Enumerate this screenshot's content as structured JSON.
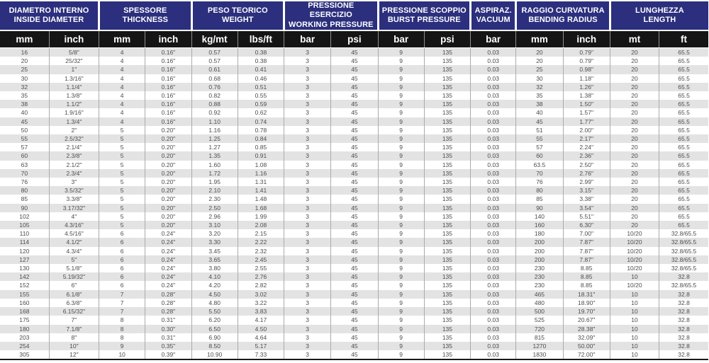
{
  "colors": {
    "header_blue": "#2b2f7d",
    "unit_band_black": "#151515",
    "stripe_gray": "#e3e3e4",
    "grid_line": "#ababab",
    "data_text": "#4d4d4d"
  },
  "table": {
    "groups": [
      {
        "line1": "DIAMETRO INTERNO",
        "line2": "INSIDE DIAMETER",
        "cols": [
          "mm",
          "inch"
        ]
      },
      {
        "line1": "SPESSORE",
        "line2": "THICKNESS",
        "cols": [
          "mm",
          "inch"
        ]
      },
      {
        "line1": "PESO TEORICO",
        "line2": "WEIGHT",
        "cols": [
          "kg/mt",
          "lbs/ft"
        ]
      },
      {
        "line1": "PRESSIONE ESERCIZIO",
        "line2": "WORKING PRESSURE",
        "cols": [
          "bar",
          "psi"
        ]
      },
      {
        "line1": "PRESSIONE SCOPPIO",
        "line2": "BURST PRESSURE",
        "cols": [
          "bar",
          "psi"
        ]
      },
      {
        "line1": "ASPIRAZ.",
        "line2": "VACUUM",
        "cols": [
          "bar"
        ]
      },
      {
        "line1": "RAGGIO CURVATURA",
        "line2": "BENDING RADIUS",
        "cols": [
          "mm",
          "inch"
        ]
      },
      {
        "line1": "LUNGHEZZA",
        "line2": "LENGTH",
        "cols": [
          "mt",
          "ft"
        ]
      }
    ],
    "rows": [
      [
        "16",
        "5/8\"",
        "4",
        "0.16\"",
        "0.57",
        "0.38",
        "3",
        "45",
        "9",
        "135",
        "0.03",
        "20",
        "0.79\"",
        "20",
        "65.5"
      ],
      [
        "20",
        "25/32\"",
        "4",
        "0.16\"",
        "0.57",
        "0.38",
        "3",
        "45",
        "9",
        "135",
        "0.03",
        "20",
        "0.79\"",
        "20",
        "65.5"
      ],
      [
        "25",
        "1\"",
        "4",
        "0.16\"",
        "0.61",
        "0.41",
        "3",
        "45",
        "9",
        "135",
        "0.03",
        "25",
        "0.98\"",
        "20",
        "65.5"
      ],
      [
        "30",
        "1.3/16\"",
        "4",
        "0.16\"",
        "0.68",
        "0.46",
        "3",
        "45",
        "9",
        "135",
        "0.03",
        "30",
        "1.18\"",
        "20",
        "65.5"
      ],
      [
        "32",
        "1.1/4\"",
        "4",
        "0.16\"",
        "0.76",
        "0.51",
        "3",
        "45",
        "9",
        "135",
        "0.03",
        "32",
        "1.26\"",
        "20",
        "65.5"
      ],
      [
        "35",
        "1.3/8\"",
        "4",
        "0.16\"",
        "0.82",
        "0.55",
        "3",
        "45",
        "9",
        "135",
        "0.03",
        "35",
        "1.38\"",
        "20",
        "65.5"
      ],
      [
        "38",
        "1.1/2\"",
        "4",
        "0.16\"",
        "0.88",
        "0.59",
        "3",
        "45",
        "9",
        "135",
        "0.03",
        "38",
        "1.50\"",
        "20",
        "65.5"
      ],
      [
        "40",
        "1.9/16\"",
        "4",
        "0.16\"",
        "0.92",
        "0.62",
        "3",
        "45",
        "9",
        "135",
        "0.03",
        "40",
        "1.57\"",
        "20",
        "65.5"
      ],
      [
        "45",
        "1.3/4\"",
        "4",
        "0.16\"",
        "1.10",
        "0.74",
        "3",
        "45",
        "9",
        "135",
        "0.03",
        "45",
        "1.77\"",
        "20",
        "65.5"
      ],
      [
        "50",
        "2\"",
        "5",
        "0.20\"",
        "1.16",
        "0.78",
        "3",
        "45",
        "9",
        "135",
        "0.03",
        "51",
        "2.00\"",
        "20",
        "65.5"
      ],
      [
        "55",
        "2.5/32\"",
        "5",
        "0.20\"",
        "1.25",
        "0.84",
        "3",
        "45",
        "9",
        "135",
        "0.03",
        "55",
        "2.17\"",
        "20",
        "65.5"
      ],
      [
        "57",
        "2.1/4\"",
        "5",
        "0.20\"",
        "1.27",
        "0.85",
        "3",
        "45",
        "9",
        "135",
        "0.03",
        "57",
        "2.24\"",
        "20",
        "65.5"
      ],
      [
        "60",
        "2.3/8\"",
        "5",
        "0.20\"",
        "1.35",
        "0.91",
        "3",
        "45",
        "9",
        "135",
        "0.03",
        "60",
        "2.36\"",
        "20",
        "65.5"
      ],
      [
        "63",
        "2.1/2\"",
        "5",
        "0.20\"",
        "1.60",
        "1.08",
        "3",
        "45",
        "9",
        "135",
        "0.03",
        "63.5",
        "2.50\"",
        "20",
        "65.5"
      ],
      [
        "70",
        "2.3/4\"",
        "5",
        "0.20\"",
        "1.72",
        "1.16",
        "3",
        "45",
        "9",
        "135",
        "0.03",
        "70",
        "2.76\"",
        "20",
        "65.5"
      ],
      [
        "76",
        "3\"",
        "5",
        "0.20\"",
        "1.95",
        "1.31",
        "3",
        "45",
        "9",
        "135",
        "0.03",
        "76",
        "2.99\"",
        "20",
        "65.5"
      ],
      [
        "80",
        "3.5/32\"",
        "5",
        "0.20\"",
        "2.10",
        "1.41",
        "3",
        "45",
        "9",
        "135",
        "0.03",
        "80",
        "3.15\"",
        "20",
        "65.5"
      ],
      [
        "85",
        "3.3/8\"",
        "5",
        "0.20\"",
        "2.30",
        "1.48",
        "3",
        "45",
        "9",
        "135",
        "0.03",
        "85",
        "3.38\"",
        "20",
        "65.5"
      ],
      [
        "90",
        "3.17/32\"",
        "5",
        "0.20\"",
        "2.50",
        "1.68",
        "3",
        "45",
        "9",
        "135",
        "0.03",
        "90",
        "3.54\"",
        "20",
        "65.5"
      ],
      [
        "102",
        "4\"",
        "5",
        "0.20\"",
        "2.96",
        "1.99",
        "3",
        "45",
        "9",
        "135",
        "0.03",
        "140",
        "5.51\"",
        "20",
        "65.5"
      ],
      [
        "105",
        "4.3/16\"",
        "5",
        "0.20\"",
        "3.10",
        "2.08",
        "3",
        "45",
        "9",
        "135",
        "0.03",
        "160",
        "6.30\"",
        "20",
        "65.5"
      ],
      [
        "110",
        "4.5/16\"",
        "6",
        "0.24\"",
        "3.20",
        "2.15",
        "3",
        "45",
        "9",
        "135",
        "0.03",
        "180",
        "7.00\"",
        "10/20",
        "32.8/65.5"
      ],
      [
        "114",
        "4.1/2\"",
        "6",
        "0.24\"",
        "3.30",
        "2.22",
        "3",
        "45",
        "9",
        "135",
        "0.03",
        "200",
        "7.87\"",
        "10/20",
        "32.8/65.5"
      ],
      [
        "120",
        "4.3/4\"",
        "6",
        "0.24\"",
        "3.45",
        "2.32",
        "3",
        "45",
        "9",
        "135",
        "0.03",
        "200",
        "7.87\"",
        "10/20",
        "32.8/65.5"
      ],
      [
        "127",
        "5\"",
        "6",
        "0.24\"",
        "3.65",
        "2.45",
        "3",
        "45",
        "9",
        "135",
        "0.03",
        "200",
        "7.87\"",
        "10/20",
        "32.8/65.5"
      ],
      [
        "130",
        "5.1/8\"",
        "6",
        "0.24\"",
        "3.80",
        "2.55",
        "3",
        "45",
        "9",
        "135",
        "0.03",
        "230",
        "8.85",
        "10/20",
        "32.8/65.5"
      ],
      [
        "142",
        "5.19/32\"",
        "6",
        "0.24\"",
        "4.10",
        "2.76",
        "3",
        "45",
        "9",
        "135",
        "0.03",
        "230",
        "8.85",
        "10",
        "32.8"
      ],
      [
        "152",
        "6\"",
        "6",
        "0.24\"",
        "4.20",
        "2.82",
        "3",
        "45",
        "9",
        "135",
        "0.03",
        "230",
        "8.85",
        "10/20",
        "32.8/65.5"
      ],
      [
        "155",
        "6.1/8\"",
        "7",
        "0.28\"",
        "4.50",
        "3.02",
        "3",
        "45",
        "9",
        "135",
        "0.03",
        "465",
        "18.31\"",
        "10",
        "32.8"
      ],
      [
        "160",
        "6.3/8\"",
        "7",
        "0.28\"",
        "4.80",
        "3.22",
        "3",
        "45",
        "9",
        "135",
        "0.03",
        "480",
        "18.90\"",
        "10",
        "32.8"
      ],
      [
        "168",
        "6.15/32\"",
        "7",
        "0.28\"",
        "5.50",
        "3.83",
        "3",
        "45",
        "9",
        "135",
        "0.03",
        "500",
        "19.70\"",
        "10",
        "32.8"
      ],
      [
        "175",
        "7\"",
        "8",
        "0.31\"",
        "6.20",
        "4.17",
        "3",
        "45",
        "9",
        "135",
        "0.03",
        "525",
        "20.67\"",
        "10",
        "32.8"
      ],
      [
        "180",
        "7.1/8\"",
        "8",
        "0.30\"",
        "6.50",
        "4.50",
        "3",
        "45",
        "9",
        "135",
        "0.03",
        "720",
        "28.38\"",
        "10",
        "32.8"
      ],
      [
        "203",
        "8\"",
        "8",
        "0.31\"",
        "6.90",
        "4.64",
        "3",
        "45",
        "9",
        "135",
        "0.03",
        "815",
        "32.09\"",
        "10",
        "32.8"
      ],
      [
        "254",
        "10\"",
        "9",
        "0.35\"",
        "8.50",
        "5.17",
        "3",
        "45",
        "9",
        "135",
        "0.03",
        "1270",
        "50.00\"",
        "10",
        "32.8"
      ],
      [
        "305",
        "12\"",
        "10",
        "0.39\"",
        "10.90",
        "7.33",
        "3",
        "45",
        "9",
        "135",
        "0.03",
        "1830",
        "72.00\"",
        "10",
        "32.8"
      ]
    ]
  }
}
